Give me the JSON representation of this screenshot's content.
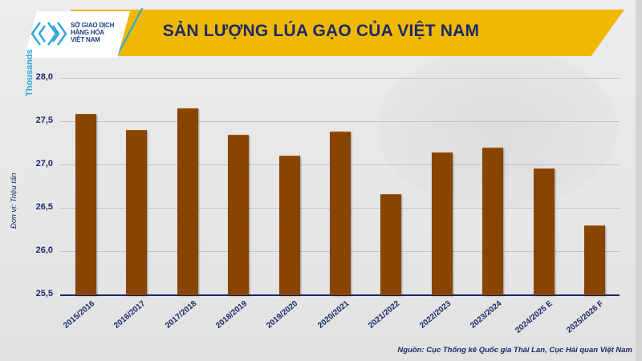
{
  "header": {
    "logo_lines": [
      "SỞ GIAO DỊCH",
      "HÀNG HÓA",
      "VIỆT NAM"
    ],
    "title": "SẢN LƯỢNG LÚA GẠO CỦA VIỆT NAM"
  },
  "axis": {
    "scale_label": "Thousands",
    "unit_label": "Đơn vị: Triệu tấn",
    "ticks": [
      "28,0",
      "27,5",
      "27,0",
      "26,5",
      "26,0",
      "25,5"
    ]
  },
  "source": "Nguồn: Cục Thống kê Quốc gia Thái Lan, Cục Hải quan Việt Nam",
  "colors": {
    "bar": "#884400",
    "banner": "#f0b800",
    "title": "#1c2a68",
    "accent": "#2aa6e0"
  },
  "chart_data": {
    "type": "bar",
    "title": "SẢN LƯỢNG LÚA GẠO CỦA VIỆT NAM",
    "xlabel": "",
    "ylabel": "Thousands (Đơn vị: Triệu tấn)",
    "ylim": [
      25.5,
      28.0
    ],
    "yticks": [
      25.5,
      26.0,
      26.5,
      27.0,
      27.5,
      28.0
    ],
    "grid": true,
    "legend": "none",
    "categories": [
      "2015/2016",
      "2016/2017",
      "2017/2018",
      "2018/2019",
      "2019/2020",
      "2020/2021",
      "2021/2022",
      "2022/2023",
      "2023/2024",
      "2024/2025 E",
      "2025/2026 F"
    ],
    "values": [
      27.58,
      27.4,
      27.65,
      27.34,
      27.1,
      27.38,
      26.66,
      27.14,
      27.19,
      26.95,
      26.3
    ],
    "annotations": [
      "Nguồn: Cục Thống kê Quốc gia Thái Lan, Cục Hải quan Việt Nam"
    ]
  }
}
